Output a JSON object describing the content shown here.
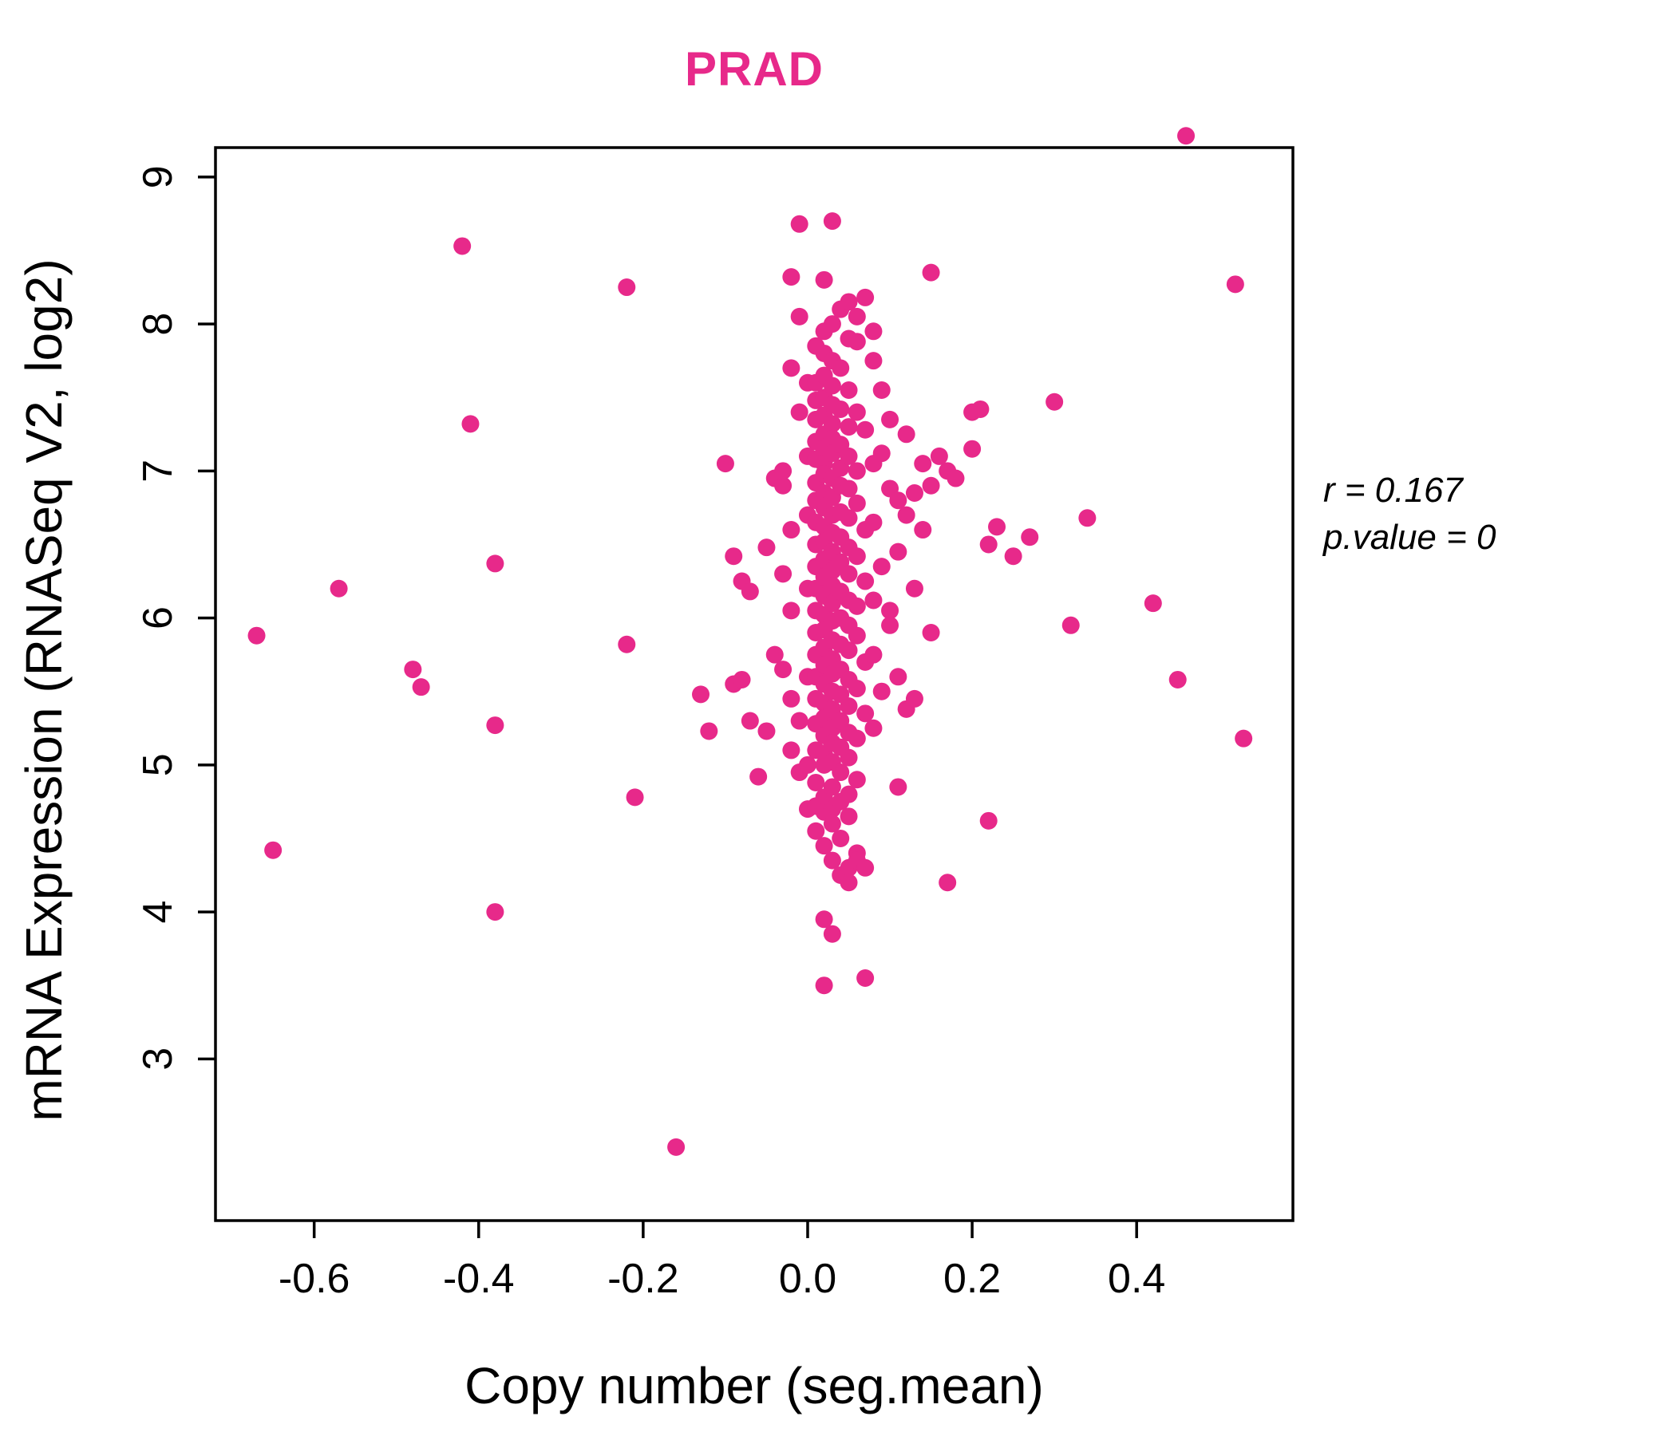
{
  "title": "PRAD",
  "annotation": {
    "line1": "r = 0.167",
    "line2": "p.value = 0"
  },
  "colors": {
    "accent": "#E7298A",
    "points": "#E7298A",
    "axis": "#000000",
    "background": "#FFFFFF"
  },
  "chart_data": {
    "type": "scatter",
    "title": "PRAD",
    "xlabel": "Copy number (seg.mean)",
    "ylabel": "mRNA Expression (RNASeq V2, log2)",
    "xlim": [
      -0.72,
      0.59
    ],
    "ylim": [
      1.9,
      9.2
    ],
    "x_ticks": [
      -0.6,
      -0.4,
      -0.2,
      0.0,
      0.2,
      0.4
    ],
    "y_ticks": [
      3,
      4,
      5,
      6,
      7,
      8,
      9
    ],
    "grid": false,
    "legend": null,
    "point_color": "#E7298A",
    "point_radius": 11,
    "points": [
      [
        -0.67,
        5.88
      ],
      [
        -0.65,
        4.42
      ],
      [
        -0.57,
        6.2
      ],
      [
        -0.48,
        5.65
      ],
      [
        -0.47,
        5.53
      ],
      [
        -0.42,
        8.53
      ],
      [
        -0.41,
        7.32
      ],
      [
        -0.38,
        6.37
      ],
      [
        -0.38,
        5.27
      ],
      [
        -0.38,
        4.0
      ],
      [
        -0.22,
        8.25
      ],
      [
        -0.22,
        5.82
      ],
      [
        -0.21,
        4.78
      ],
      [
        -0.16,
        2.4
      ],
      [
        -0.13,
        5.48
      ],
      [
        -0.12,
        5.23
      ],
      [
        -0.1,
        7.05
      ],
      [
        -0.09,
        6.42
      ],
      [
        -0.09,
        5.55
      ],
      [
        -0.08,
        6.25
      ],
      [
        -0.08,
        5.58
      ],
      [
        -0.07,
        6.18
      ],
      [
        -0.07,
        5.3
      ],
      [
        -0.06,
        4.92
      ],
      [
        -0.05,
        6.48
      ],
      [
        -0.05,
        5.23
      ],
      [
        -0.04,
        6.95
      ],
      [
        -0.04,
        5.75
      ],
      [
        -0.03,
        6.9
      ],
      [
        -0.03,
        6.3
      ],
      [
        -0.03,
        5.65
      ],
      [
        -0.03,
        7.0
      ],
      [
        -0.02,
        8.32
      ],
      [
        -0.02,
        6.6
      ],
      [
        -0.02,
        6.05
      ],
      [
        -0.02,
        5.45
      ],
      [
        -0.02,
        5.1
      ],
      [
        -0.02,
        7.7
      ],
      [
        -0.01,
        8.68
      ],
      [
        -0.01,
        7.4
      ],
      [
        -0.01,
        8.05
      ],
      [
        -0.01,
        5.3
      ],
      [
        -0.01,
        4.95
      ],
      [
        0.0,
        6.7
      ],
      [
        0.0,
        6.2
      ],
      [
        0.0,
        5.6
      ],
      [
        0.0,
        5.0
      ],
      [
        0.0,
        7.1
      ],
      [
        0.0,
        7.6
      ],
      [
        0.0,
        4.7
      ],
      [
        0.01,
        7.85
      ],
      [
        0.01,
        7.6
      ],
      [
        0.01,
        7.48
      ],
      [
        0.01,
        7.35
      ],
      [
        0.01,
        7.2
      ],
      [
        0.01,
        7.08
      ],
      [
        0.01,
        6.92
      ],
      [
        0.01,
        6.8
      ],
      [
        0.01,
        6.65
      ],
      [
        0.01,
        6.5
      ],
      [
        0.01,
        6.35
      ],
      [
        0.01,
        6.2
      ],
      [
        0.01,
        6.05
      ],
      [
        0.01,
        5.9
      ],
      [
        0.01,
        5.75
      ],
      [
        0.01,
        5.6
      ],
      [
        0.01,
        5.45
      ],
      [
        0.01,
        5.28
      ],
      [
        0.01,
        5.1
      ],
      [
        0.01,
        4.88
      ],
      [
        0.01,
        4.72
      ],
      [
        0.01,
        4.55
      ],
      [
        0.02,
        8.3
      ],
      [
        0.02,
        7.95
      ],
      [
        0.02,
        7.8
      ],
      [
        0.02,
        7.65
      ],
      [
        0.02,
        7.5
      ],
      [
        0.02,
        7.38
      ],
      [
        0.02,
        7.25
      ],
      [
        0.02,
        7.15
      ],
      [
        0.02,
        7.05
      ],
      [
        0.02,
        6.98
      ],
      [
        0.02,
        6.85
      ],
      [
        0.02,
        6.75
      ],
      [
        0.02,
        6.62
      ],
      [
        0.02,
        6.52
      ],
      [
        0.02,
        6.4
      ],
      [
        0.02,
        6.28
      ],
      [
        0.02,
        6.15
      ],
      [
        0.02,
        6.02
      ],
      [
        0.02,
        5.92
      ],
      [
        0.02,
        5.8
      ],
      [
        0.02,
        5.68
      ],
      [
        0.02,
        5.55
      ],
      [
        0.02,
        5.42
      ],
      [
        0.02,
        5.32
      ],
      [
        0.02,
        5.2
      ],
      [
        0.02,
        5.08
      ],
      [
        0.02,
        5.0
      ],
      [
        0.02,
        4.78
      ],
      [
        0.02,
        4.68
      ],
      [
        0.02,
        4.45
      ],
      [
        0.02,
        3.95
      ],
      [
        0.02,
        3.5
      ],
      [
        0.03,
        8.7
      ],
      [
        0.03,
        8.0
      ],
      [
        0.03,
        7.75
      ],
      [
        0.03,
        7.58
      ],
      [
        0.03,
        7.45
      ],
      [
        0.03,
        7.32
      ],
      [
        0.03,
        7.22
      ],
      [
        0.03,
        7.12
      ],
      [
        0.03,
        6.95
      ],
      [
        0.03,
        6.82
      ],
      [
        0.03,
        6.7
      ],
      [
        0.03,
        6.58
      ],
      [
        0.03,
        6.45
      ],
      [
        0.03,
        6.32
      ],
      [
        0.03,
        6.22
      ],
      [
        0.03,
        6.1
      ],
      [
        0.03,
        5.98
      ],
      [
        0.03,
        5.85
      ],
      [
        0.03,
        5.72
      ],
      [
        0.03,
        5.62
      ],
      [
        0.03,
        5.5
      ],
      [
        0.03,
        5.38
      ],
      [
        0.03,
        5.25
      ],
      [
        0.03,
        5.15
      ],
      [
        0.03,
        5.02
      ],
      [
        0.03,
        4.85
      ],
      [
        0.03,
        4.7
      ],
      [
        0.03,
        4.6
      ],
      [
        0.03,
        4.35
      ],
      [
        0.03,
        3.85
      ],
      [
        0.04,
        8.1
      ],
      [
        0.04,
        7.7
      ],
      [
        0.04,
        7.42
      ],
      [
        0.04,
        7.18
      ],
      [
        0.04,
        7.02
      ],
      [
        0.04,
        6.9
      ],
      [
        0.04,
        6.72
      ],
      [
        0.04,
        6.55
      ],
      [
        0.04,
        6.38
      ],
      [
        0.04,
        6.18
      ],
      [
        0.04,
        6.0
      ],
      [
        0.04,
        5.82
      ],
      [
        0.04,
        5.65
      ],
      [
        0.04,
        5.48
      ],
      [
        0.04,
        5.3
      ],
      [
        0.04,
        5.12
      ],
      [
        0.04,
        4.95
      ],
      [
        0.04,
        4.75
      ],
      [
        0.04,
        4.5
      ],
      [
        0.04,
        4.25
      ],
      [
        0.05,
        8.15
      ],
      [
        0.05,
        7.9
      ],
      [
        0.05,
        7.55
      ],
      [
        0.05,
        7.3
      ],
      [
        0.05,
        7.1
      ],
      [
        0.05,
        6.88
      ],
      [
        0.05,
        6.68
      ],
      [
        0.05,
        6.48
      ],
      [
        0.05,
        6.3
      ],
      [
        0.05,
        6.12
      ],
      [
        0.05,
        5.95
      ],
      [
        0.05,
        5.78
      ],
      [
        0.05,
        5.58
      ],
      [
        0.05,
        5.4
      ],
      [
        0.05,
        5.22
      ],
      [
        0.05,
        5.05
      ],
      [
        0.05,
        4.8
      ],
      [
        0.05,
        4.65
      ],
      [
        0.05,
        4.3
      ],
      [
        0.05,
        4.2
      ],
      [
        0.06,
        8.05
      ],
      [
        0.06,
        7.88
      ],
      [
        0.06,
        7.4
      ],
      [
        0.06,
        7.0
      ],
      [
        0.06,
        6.78
      ],
      [
        0.06,
        6.42
      ],
      [
        0.06,
        6.08
      ],
      [
        0.06,
        5.88
      ],
      [
        0.06,
        5.52
      ],
      [
        0.06,
        5.18
      ],
      [
        0.06,
        4.9
      ],
      [
        0.06,
        4.4
      ],
      [
        0.06,
        4.35
      ],
      [
        0.07,
        8.18
      ],
      [
        0.07,
        7.28
      ],
      [
        0.07,
        6.6
      ],
      [
        0.07,
        6.25
      ],
      [
        0.07,
        5.7
      ],
      [
        0.07,
        5.35
      ],
      [
        0.07,
        4.3
      ],
      [
        0.07,
        3.55
      ],
      [
        0.08,
        7.95
      ],
      [
        0.08,
        7.75
      ],
      [
        0.08,
        7.05
      ],
      [
        0.08,
        6.65
      ],
      [
        0.08,
        6.12
      ],
      [
        0.08,
        5.75
      ],
      [
        0.08,
        5.25
      ],
      [
        0.09,
        7.55
      ],
      [
        0.09,
        7.12
      ],
      [
        0.09,
        6.35
      ],
      [
        0.09,
        5.5
      ],
      [
        0.1,
        7.35
      ],
      [
        0.1,
        6.88
      ],
      [
        0.1,
        6.05
      ],
      [
        0.1,
        5.95
      ],
      [
        0.11,
        6.8
      ],
      [
        0.11,
        6.45
      ],
      [
        0.11,
        5.6
      ],
      [
        0.11,
        4.85
      ],
      [
        0.12,
        7.25
      ],
      [
        0.12,
        6.7
      ],
      [
        0.12,
        5.38
      ],
      [
        0.13,
        6.85
      ],
      [
        0.13,
        6.2
      ],
      [
        0.13,
        5.45
      ],
      [
        0.14,
        7.05
      ],
      [
        0.14,
        6.6
      ],
      [
        0.15,
        8.35
      ],
      [
        0.15,
        6.9
      ],
      [
        0.15,
        5.9
      ],
      [
        0.16,
        7.1
      ],
      [
        0.17,
        7.0
      ],
      [
        0.17,
        4.2
      ],
      [
        0.18,
        6.95
      ],
      [
        0.2,
        7.15
      ],
      [
        0.2,
        7.4
      ],
      [
        0.21,
        7.42
      ],
      [
        0.22,
        6.5
      ],
      [
        0.22,
        4.62
      ],
      [
        0.23,
        6.62
      ],
      [
        0.25,
        6.42
      ],
      [
        0.27,
        6.55
      ],
      [
        0.3,
        7.47
      ],
      [
        0.32,
        5.95
      ],
      [
        0.34,
        6.68
      ],
      [
        0.42,
        6.1
      ],
      [
        0.45,
        5.58
      ],
      [
        0.46,
        9.28
      ],
      [
        0.52,
        8.27
      ],
      [
        0.53,
        5.18
      ]
    ]
  }
}
